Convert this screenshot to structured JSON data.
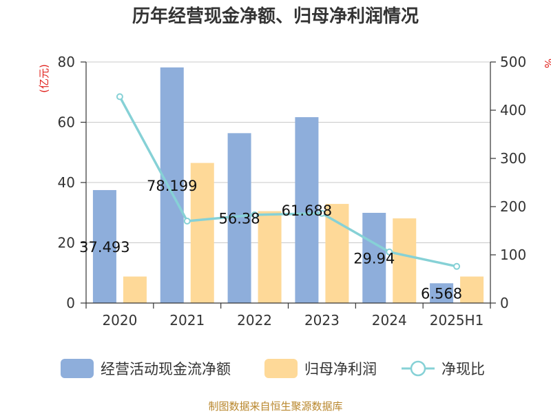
{
  "chart_data": {
    "type": "bar",
    "title": "历年经营现金净额、归母净利润情况",
    "categories": [
      "2020",
      "2021",
      "2022",
      "2023",
      "2024",
      "2025H1"
    ],
    "left_axis": {
      "unit": "(亿元)",
      "ylim": [
        0,
        80
      ],
      "ticks": [
        "0",
        "20",
        "40",
        "60",
        "80"
      ]
    },
    "right_axis": {
      "unit": "%",
      "ylim": [
        0,
        500
      ],
      "ticks": [
        "0",
        "100",
        "200",
        "300",
        "400",
        "500"
      ]
    },
    "grid": true,
    "legend_position": "bottom",
    "series": [
      {
        "name": "经营活动现金流净额",
        "type": "bar",
        "axis": "left",
        "color": "#8eaedb",
        "values": [
          37.493,
          78.199,
          56.38,
          61.688,
          29.94,
          6.568
        ],
        "labels": [
          "37.493",
          "78.199",
          "56.38",
          "61.688",
          "29.94",
          "6.568"
        ]
      },
      {
        "name": "归母净利润",
        "type": "bar",
        "axis": "left",
        "color": "#fed998",
        "values": [
          8.8,
          46.5,
          30.5,
          32.9,
          28.1,
          8.8
        ]
      },
      {
        "name": "净现比",
        "type": "line",
        "axis": "right",
        "color": "#86d1d6",
        "values": [
          428,
          170,
          183,
          186,
          106,
          76
        ]
      }
    ]
  },
  "source_text": "制图数据来自恒生聚源数据库"
}
